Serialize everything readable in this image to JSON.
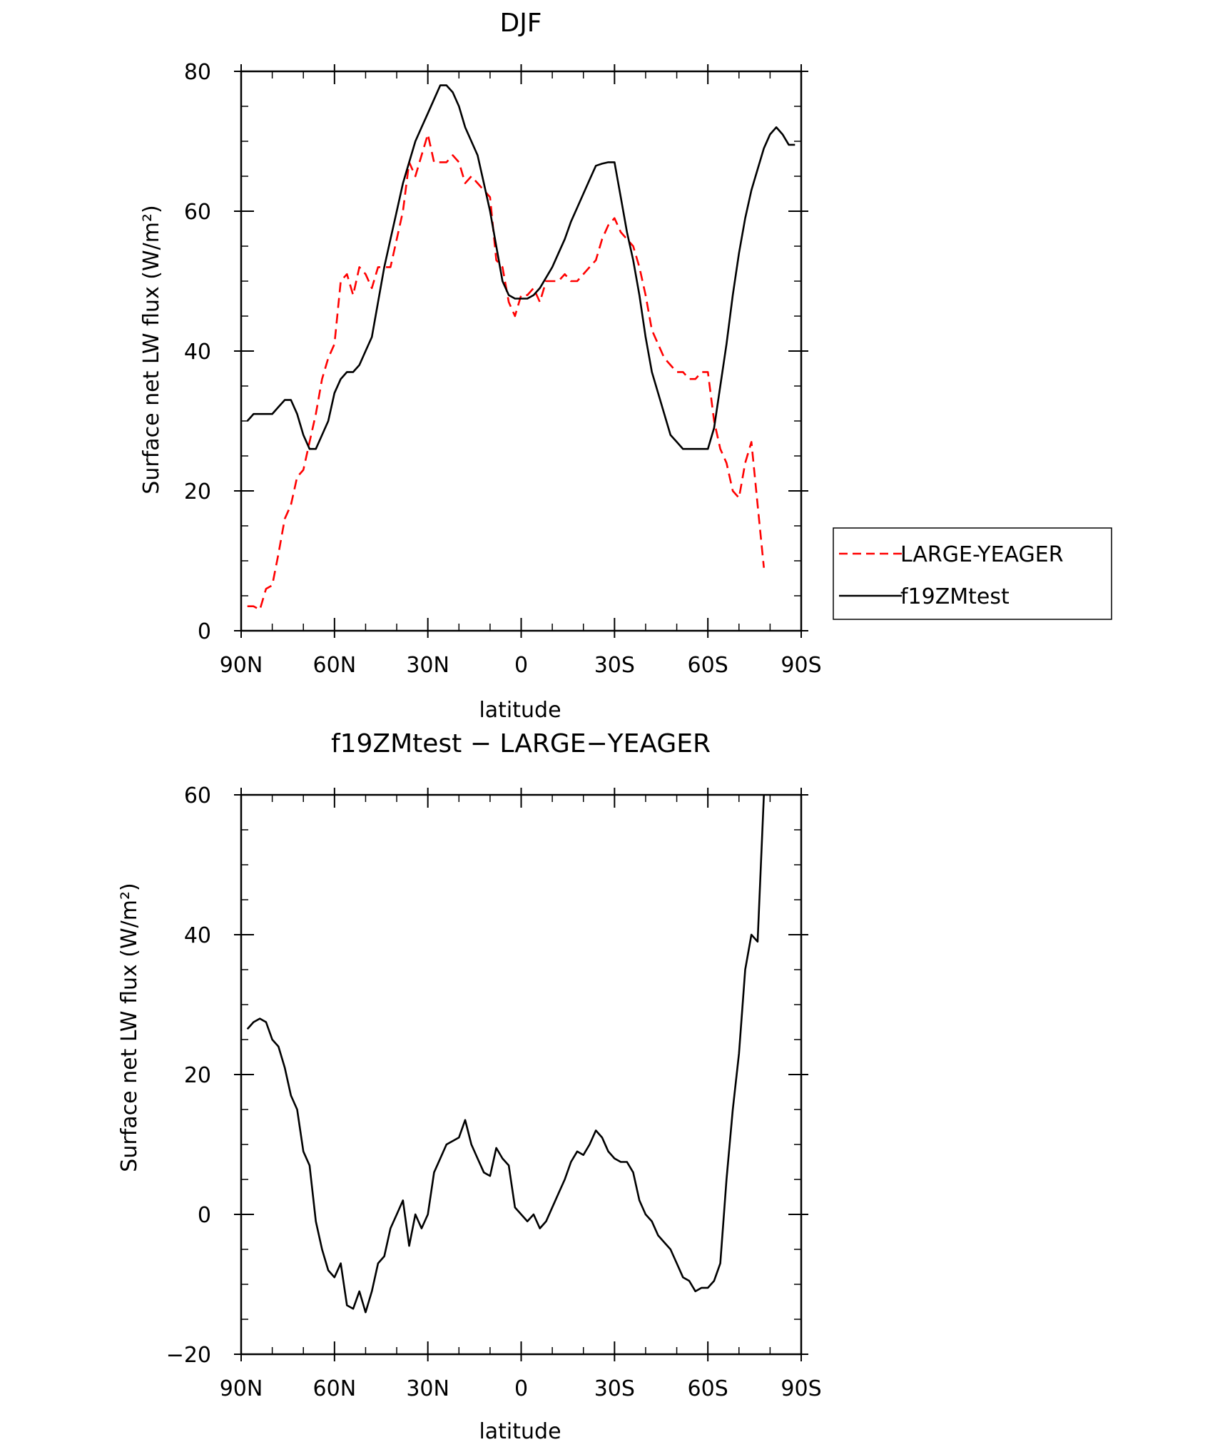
{
  "chart_data": [
    {
      "type": "line",
      "title": "DJF",
      "xlabel": "latitude",
      "ylabel": "Surface net LW flux (W/m²)",
      "xlim": [
        90,
        -90
      ],
      "ylim": [
        0,
        80
      ],
      "x_ticks": [
        {
          "value": 90,
          "label": "90N"
        },
        {
          "value": 60,
          "label": "60N"
        },
        {
          "value": 30,
          "label": "30N"
        },
        {
          "value": 0,
          "label": "0"
        },
        {
          "value": -30,
          "label": "30S"
        },
        {
          "value": -60,
          "label": "60S"
        },
        {
          "value": -90,
          "label": "90S"
        }
      ],
      "y_ticks": [
        0,
        20,
        40,
        60,
        80
      ],
      "y_minor_step": 5,
      "x_minor_step": 10,
      "legend": "right",
      "series": [
        {
          "name": "LARGE-YEAGER",
          "color": "#ff0000",
          "dash": "dashed",
          "x": [
            88,
            86,
            84,
            82,
            80,
            78,
            76,
            74,
            72,
            70,
            68,
            66,
            64,
            62,
            60,
            58,
            56,
            54,
            52,
            50,
            48,
            46,
            44,
            42,
            40,
            38,
            36,
            34,
            32,
            30,
            28,
            26,
            24,
            22,
            20,
            18,
            16,
            14,
            12,
            10,
            8,
            6,
            4,
            2,
            0,
            -2,
            -4,
            -6,
            -8,
            -10,
            -12,
            -14,
            -16,
            -18,
            -20,
            -22,
            -24,
            -26,
            -28,
            -30,
            -32,
            -34,
            -36,
            -38,
            -40,
            -42,
            -44,
            -46,
            -48,
            -50,
            -52,
            -54,
            -56,
            -58,
            -60,
            -62,
            -64,
            -66,
            -68,
            -70,
            -72,
            -74,
            -76,
            -78
          ],
          "y": [
            3.5,
            3.5,
            3.0,
            6.0,
            6.5,
            11,
            16,
            18,
            22,
            23,
            27,
            31,
            36,
            39,
            41,
            50,
            51,
            48,
            52,
            51,
            49,
            52,
            52,
            52,
            56,
            60,
            67,
            65,
            68,
            71,
            67,
            67,
            67,
            68,
            67,
            64,
            65,
            64,
            63,
            62,
            53,
            52,
            47,
            45,
            48,
            48,
            49,
            47,
            50,
            50,
            50,
            51,
            50,
            50,
            51,
            52,
            53,
            56,
            58,
            59,
            57,
            56,
            55,
            52,
            48,
            43,
            41,
            39,
            38,
            37,
            37,
            36,
            36,
            37,
            37,
            30,
            26,
            24,
            20,
            19,
            24,
            27,
            18,
            9
          ]
        },
        {
          "name": "f19ZMtest",
          "color": "#000000",
          "dash": "solid",
          "x": [
            88,
            86,
            84,
            82,
            80,
            78,
            76,
            74,
            72,
            70,
            68,
            66,
            64,
            62,
            60,
            58,
            56,
            54,
            52,
            50,
            48,
            46,
            44,
            42,
            40,
            38,
            36,
            34,
            32,
            30,
            28,
            26,
            24,
            22,
            20,
            18,
            16,
            14,
            12,
            10,
            8,
            6,
            4,
            2,
            0,
            -2,
            -4,
            -6,
            -8,
            -10,
            -12,
            -14,
            -16,
            -18,
            -20,
            -22,
            -24,
            -26,
            -28,
            -30,
            -32,
            -34,
            -36,
            -38,
            -40,
            -42,
            -44,
            -46,
            -48,
            -50,
            -52,
            -54,
            -56,
            -58,
            -60,
            -62,
            -64,
            -66,
            -68,
            -70,
            -72,
            -74,
            -76,
            -78,
            -80,
            -82,
            -84,
            -86,
            -88
          ],
          "y": [
            30,
            31,
            31,
            31,
            31,
            32,
            33,
            33,
            31,
            28,
            26,
            26,
            28,
            30,
            34,
            36,
            37,
            37,
            38,
            40,
            42,
            47,
            52,
            56,
            60,
            64,
            67,
            70,
            72,
            74,
            76,
            78,
            78,
            77,
            75,
            72,
            70,
            68,
            64,
            60,
            55,
            50,
            48,
            47.5,
            47.5,
            47.5,
            48,
            49,
            50.5,
            52,
            54,
            56,
            58.5,
            60.5,
            62.5,
            64.5,
            66.5,
            66.8,
            67,
            67,
            62,
            57,
            53,
            48,
            42,
            37,
            34,
            31,
            28,
            27,
            26,
            26,
            26,
            26,
            26,
            29,
            35,
            41,
            48,
            54,
            59,
            63,
            66,
            69,
            71,
            72,
            71,
            69.5,
            69.5
          ]
        }
      ]
    },
    {
      "type": "line",
      "title": "f19ZMtest − LARGE−YEAGER",
      "xlabel": "latitude",
      "ylabel": "Surface net LW flux (W/m²)",
      "xlim": [
        90,
        -90
      ],
      "ylim": [
        -20,
        60
      ],
      "x_ticks": [
        {
          "value": 90,
          "label": "90N"
        },
        {
          "value": 60,
          "label": "60N"
        },
        {
          "value": 30,
          "label": "30N"
        },
        {
          "value": 0,
          "label": "0"
        },
        {
          "value": -30,
          "label": "30S"
        },
        {
          "value": -60,
          "label": "60S"
        },
        {
          "value": -90,
          "label": "90S"
        }
      ],
      "y_ticks": [
        -20,
        0,
        20,
        40,
        60
      ],
      "y_minor_step": 5,
      "x_minor_step": 10,
      "series": [
        {
          "color": "#000000",
          "dash": "solid",
          "x": [
            88,
            86,
            84,
            82,
            80,
            78,
            76,
            74,
            72,
            70,
            68,
            66,
            64,
            62,
            60,
            58,
            56,
            54,
            52,
            50,
            48,
            46,
            44,
            42,
            40,
            38,
            36,
            34,
            32,
            30,
            28,
            26,
            24,
            22,
            20,
            18,
            16,
            14,
            12,
            10,
            8,
            6,
            4,
            2,
            0,
            -2,
            -4,
            -6,
            -8,
            -10,
            -12,
            -14,
            -16,
            -18,
            -20,
            -22,
            -24,
            -26,
            -28,
            -30,
            -32,
            -34,
            -36,
            -38,
            -40,
            -42,
            -44,
            -46,
            -48,
            -50,
            -52,
            -54,
            -56,
            -58,
            -60,
            -62,
            -64,
            -66,
            -68,
            -70,
            -72,
            -74,
            -76,
            -78
          ],
          "y": [
            26.5,
            27.5,
            28,
            27.5,
            25,
            24,
            21,
            17,
            15,
            9,
            7,
            -1,
            -5,
            -8,
            -9,
            -7,
            -13,
            -13.5,
            -11,
            -14,
            -11,
            -7,
            -6,
            -2,
            0,
            2,
            -4.5,
            0,
            -2,
            0,
            6,
            8,
            10,
            10.5,
            11,
            13.5,
            10,
            8,
            6,
            5.5,
            9.5,
            8,
            7,
            1,
            0,
            -1,
            0,
            -2,
            -1,
            1,
            3,
            5,
            7.5,
            9,
            8.5,
            10,
            12,
            11,
            9,
            8,
            7.5,
            7.5,
            6,
            2,
            0,
            -1,
            -3,
            -4,
            -5,
            -7,
            -9,
            -9.5,
            -11,
            -10.5,
            -10.5,
            -9.5,
            -7,
            5,
            15,
            23,
            35,
            40,
            39,
            60
          ]
        }
      ]
    }
  ]
}
